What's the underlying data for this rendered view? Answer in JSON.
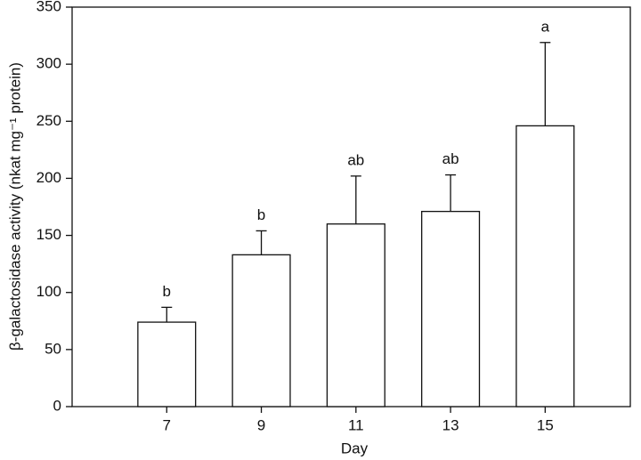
{
  "chart_data": {
    "type": "bar",
    "x_label": "Day",
    "y_label": "β-galactosidase activity (nkat mg⁻¹ protein)",
    "x": [
      7,
      9,
      11,
      13,
      15
    ],
    "values": [
      74,
      133,
      160,
      171,
      246
    ],
    "errors": [
      13,
      21,
      42,
      32,
      73
    ],
    "annotations": [
      "b",
      "b",
      "ab",
      "ab",
      "a"
    ],
    "color": "#ffffff",
    "xlim": [
      5,
      16.8
    ],
    "xticks": [
      7,
      9,
      11,
      13,
      15
    ],
    "ylim": [
      0,
      350
    ],
    "yticks": [
      0,
      50,
      100,
      150,
      200,
      250,
      300,
      350
    ],
    "grid": false
  }
}
